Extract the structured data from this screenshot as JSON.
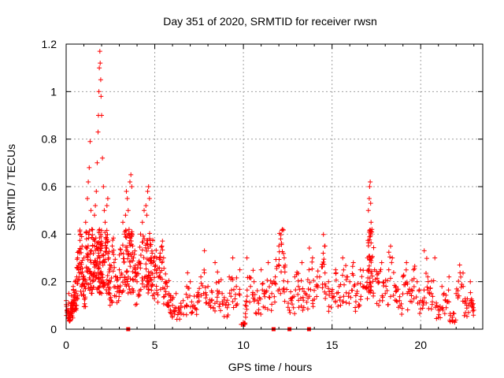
{
  "chart_data": {
    "type": "scatter",
    "title": "Day 351 of 2020, SRMTID for receiver rwsn",
    "xlabel": "GPS time / hours",
    "ylabel": "SRMTID / TECUs",
    "xlim": [
      0,
      23.5
    ],
    "ylim": [
      0,
      1.2
    ],
    "xticks": [
      0,
      5,
      10,
      15,
      20
    ],
    "xtick_labels": [
      "0",
      "5",
      "10",
      "15",
      "20"
    ],
    "yticks": [
      0,
      0.2,
      0.4,
      0.6,
      0.8,
      1,
      1.2
    ],
    "ytick_labels": [
      "0",
      "0.2",
      "0.4",
      "0.6",
      "0.8",
      "1",
      "1.2"
    ],
    "grid": true,
    "marker": "+",
    "color": "#ff0000",
    "series": [
      {
        "name": "SRMTID",
        "sample_points": [
          [
            0.0,
            0.12
          ],
          [
            0.1,
            0.08
          ],
          [
            0.15,
            0.15
          ],
          [
            0.2,
            0.05
          ],
          [
            0.25,
            0.1
          ],
          [
            0.3,
            0.14
          ],
          [
            0.35,
            0.09
          ],
          [
            0.4,
            0.18
          ],
          [
            0.45,
            0.12
          ],
          [
            0.5,
            0.2
          ],
          [
            0.55,
            0.16
          ],
          [
            0.6,
            0.22
          ],
          [
            0.65,
            0.3
          ],
          [
            0.7,
            0.25
          ],
          [
            0.75,
            0.32
          ],
          [
            0.8,
            0.4
          ],
          [
            0.85,
            0.28
          ],
          [
            0.9,
            0.35
          ],
          [
            0.95,
            0.22
          ],
          [
            1.0,
            0.3
          ],
          [
            1.05,
            0.18
          ],
          [
            1.1,
            0.45
          ],
          [
            1.15,
            0.38
          ],
          [
            1.2,
            0.55
          ],
          [
            1.25,
            0.62
          ],
          [
            1.3,
            0.68
          ],
          [
            1.35,
            0.79
          ],
          [
            1.4,
            0.5
          ],
          [
            1.45,
            0.42
          ],
          [
            1.5,
            0.35
          ],
          [
            1.55,
            0.28
          ],
          [
            1.6,
            0.48
          ],
          [
            1.65,
            0.52
          ],
          [
            1.7,
            0.58
          ],
          [
            1.75,
            0.7
          ],
          [
            1.8,
            0.83
          ],
          [
            1.82,
            0.9
          ],
          [
            1.85,
            1.0
          ],
          [
            1.87,
            1.1
          ],
          [
            1.9,
            1.17
          ],
          [
            1.92,
            1.12
          ],
          [
            1.95,
            1.05
          ],
          [
            1.97,
            0.98
          ],
          [
            2.0,
            0.9
          ],
          [
            2.05,
            0.72
          ],
          [
            2.1,
            0.6
          ],
          [
            2.15,
            0.5
          ],
          [
            2.2,
            0.45
          ],
          [
            2.25,
            0.38
          ],
          [
            2.3,
            0.52
          ],
          [
            2.35,
            0.55
          ],
          [
            2.4,
            0.3
          ],
          [
            2.45,
            0.25
          ],
          [
            2.5,
            0.2
          ],
          [
            2.6,
            0.35
          ],
          [
            2.7,
            0.28
          ],
          [
            2.8,
            0.22
          ],
          [
            2.9,
            0.18
          ],
          [
            3.0,
            0.25
          ],
          [
            3.1,
            0.32
          ],
          [
            3.2,
            0.45
          ],
          [
            3.3,
            0.4
          ],
          [
            3.35,
            0.48
          ],
          [
            3.4,
            0.58
          ],
          [
            3.45,
            0.55
          ],
          [
            3.5,
            0.5
          ],
          [
            3.55,
            0.42
          ],
          [
            3.6,
            0.62
          ],
          [
            3.65,
            0.65
          ],
          [
            3.7,
            0.6
          ],
          [
            3.75,
            0.35
          ],
          [
            3.8,
            0.3
          ],
          [
            3.9,
            0.25
          ],
          [
            4.0,
            0.2
          ],
          [
            4.1,
            0.28
          ],
          [
            4.2,
            0.4
          ],
          [
            4.3,
            0.45
          ],
          [
            4.4,
            0.5
          ],
          [
            4.5,
            0.52
          ],
          [
            4.55,
            0.48
          ],
          [
            4.6,
            0.58
          ],
          [
            4.65,
            0.6
          ],
          [
            4.7,
            0.55
          ],
          [
            4.75,
            0.35
          ],
          [
            4.8,
            0.3
          ],
          [
            4.85,
            0.32
          ],
          [
            4.9,
            0.28
          ],
          [
            5.0,
            0.25
          ],
          [
            5.1,
            0.3
          ],
          [
            5.2,
            0.22
          ],
          [
            5.3,
            0.32
          ],
          [
            5.4,
            0.28
          ],
          [
            5.5,
            0.3
          ],
          [
            5.6,
            0.2
          ],
          [
            5.7,
            0.18
          ],
          [
            5.8,
            0.15
          ],
          [
            5.9,
            0.12
          ],
          [
            6.0,
            0.1
          ],
          [
            6.2,
            0.15
          ],
          [
            6.4,
            0.08
          ],
          [
            6.6,
            0.12
          ],
          [
            6.8,
            0.18
          ],
          [
            7.0,
            0.2
          ],
          [
            7.2,
            0.1
          ],
          [
            7.4,
            0.14
          ],
          [
            7.6,
            0.22
          ],
          [
            7.8,
            0.33
          ],
          [
            8.0,
            0.18
          ],
          [
            8.2,
            0.12
          ],
          [
            8.4,
            0.28
          ],
          [
            8.6,
            0.2
          ],
          [
            8.8,
            0.15
          ],
          [
            9.0,
            0.1
          ],
          [
            9.2,
            0.22
          ],
          [
            9.4,
            0.3
          ],
          [
            9.6,
            0.18
          ],
          [
            9.8,
            0.25
          ],
          [
            10.0,
            0.02
          ],
          [
            10.1,
            0.1
          ],
          [
            10.2,
            0.3
          ],
          [
            10.4,
            0.18
          ],
          [
            10.6,
            0.2
          ],
          [
            10.8,
            0.12
          ],
          [
            11.0,
            0.25
          ],
          [
            11.2,
            0.16
          ],
          [
            11.4,
            0.28
          ],
          [
            11.6,
            0.15
          ],
          [
            11.8,
            0.22
          ],
          [
            12.0,
            0.35
          ],
          [
            12.1,
            0.38
          ],
          [
            12.2,
            0.42
          ],
          [
            12.3,
            0.3
          ],
          [
            12.5,
            0.2
          ],
          [
            12.7,
            0.12
          ],
          [
            12.9,
            0.22
          ],
          [
            13.1,
            0.18
          ],
          [
            13.3,
            0.28
          ],
          [
            13.5,
            0.15
          ],
          [
            13.7,
            0.25
          ],
          [
            13.9,
            0.3
          ],
          [
            14.1,
            0.18
          ],
          [
            14.3,
            0.22
          ],
          [
            14.5,
            0.32
          ],
          [
            14.6,
            0.35
          ],
          [
            14.8,
            0.2
          ],
          [
            15.0,
            0.15
          ],
          [
            15.2,
            0.25
          ],
          [
            15.4,
            0.18
          ],
          [
            15.6,
            0.3
          ],
          [
            15.8,
            0.22
          ],
          [
            16.0,
            0.2
          ],
          [
            16.2,
            0.28
          ],
          [
            16.4,
            0.15
          ],
          [
            16.6,
            0.25
          ],
          [
            16.8,
            0.18
          ],
          [
            17.0,
            0.3
          ],
          [
            17.05,
            0.5
          ],
          [
            17.1,
            0.55
          ],
          [
            17.12,
            0.6
          ],
          [
            17.15,
            0.62
          ],
          [
            17.18,
            0.53
          ],
          [
            17.2,
            0.45
          ],
          [
            17.25,
            0.42
          ],
          [
            17.4,
            0.25
          ],
          [
            17.6,
            0.2
          ],
          [
            17.8,
            0.28
          ],
          [
            18.0,
            0.15
          ],
          [
            18.2,
            0.25
          ],
          [
            18.4,
            0.3
          ],
          [
            18.6,
            0.18
          ],
          [
            18.8,
            0.12
          ],
          [
            19.0,
            0.22
          ],
          [
            19.2,
            0.28
          ],
          [
            19.4,
            0.15
          ],
          [
            19.6,
            0.25
          ],
          [
            19.8,
            0.2
          ],
          [
            20.0,
            0.12
          ],
          [
            20.2,
            0.33
          ],
          [
            20.4,
            0.22
          ],
          [
            20.6,
            0.15
          ],
          [
            20.8,
            0.3
          ],
          [
            21.0,
            0.08
          ],
          [
            21.2,
            0.18
          ],
          [
            21.4,
            0.12
          ],
          [
            21.6,
            0.22
          ],
          [
            21.8,
            0.05
          ],
          [
            22.0,
            0.15
          ],
          [
            22.2,
            0.27
          ],
          [
            22.4,
            0.18
          ],
          [
            22.6,
            0.1
          ],
          [
            22.8,
            0.2
          ],
          [
            22.9,
            0.12
          ],
          [
            23.0,
            0.08
          ]
        ],
        "zero_points": [
          3.5,
          11.7,
          12.6,
          13.7
        ]
      }
    ]
  }
}
